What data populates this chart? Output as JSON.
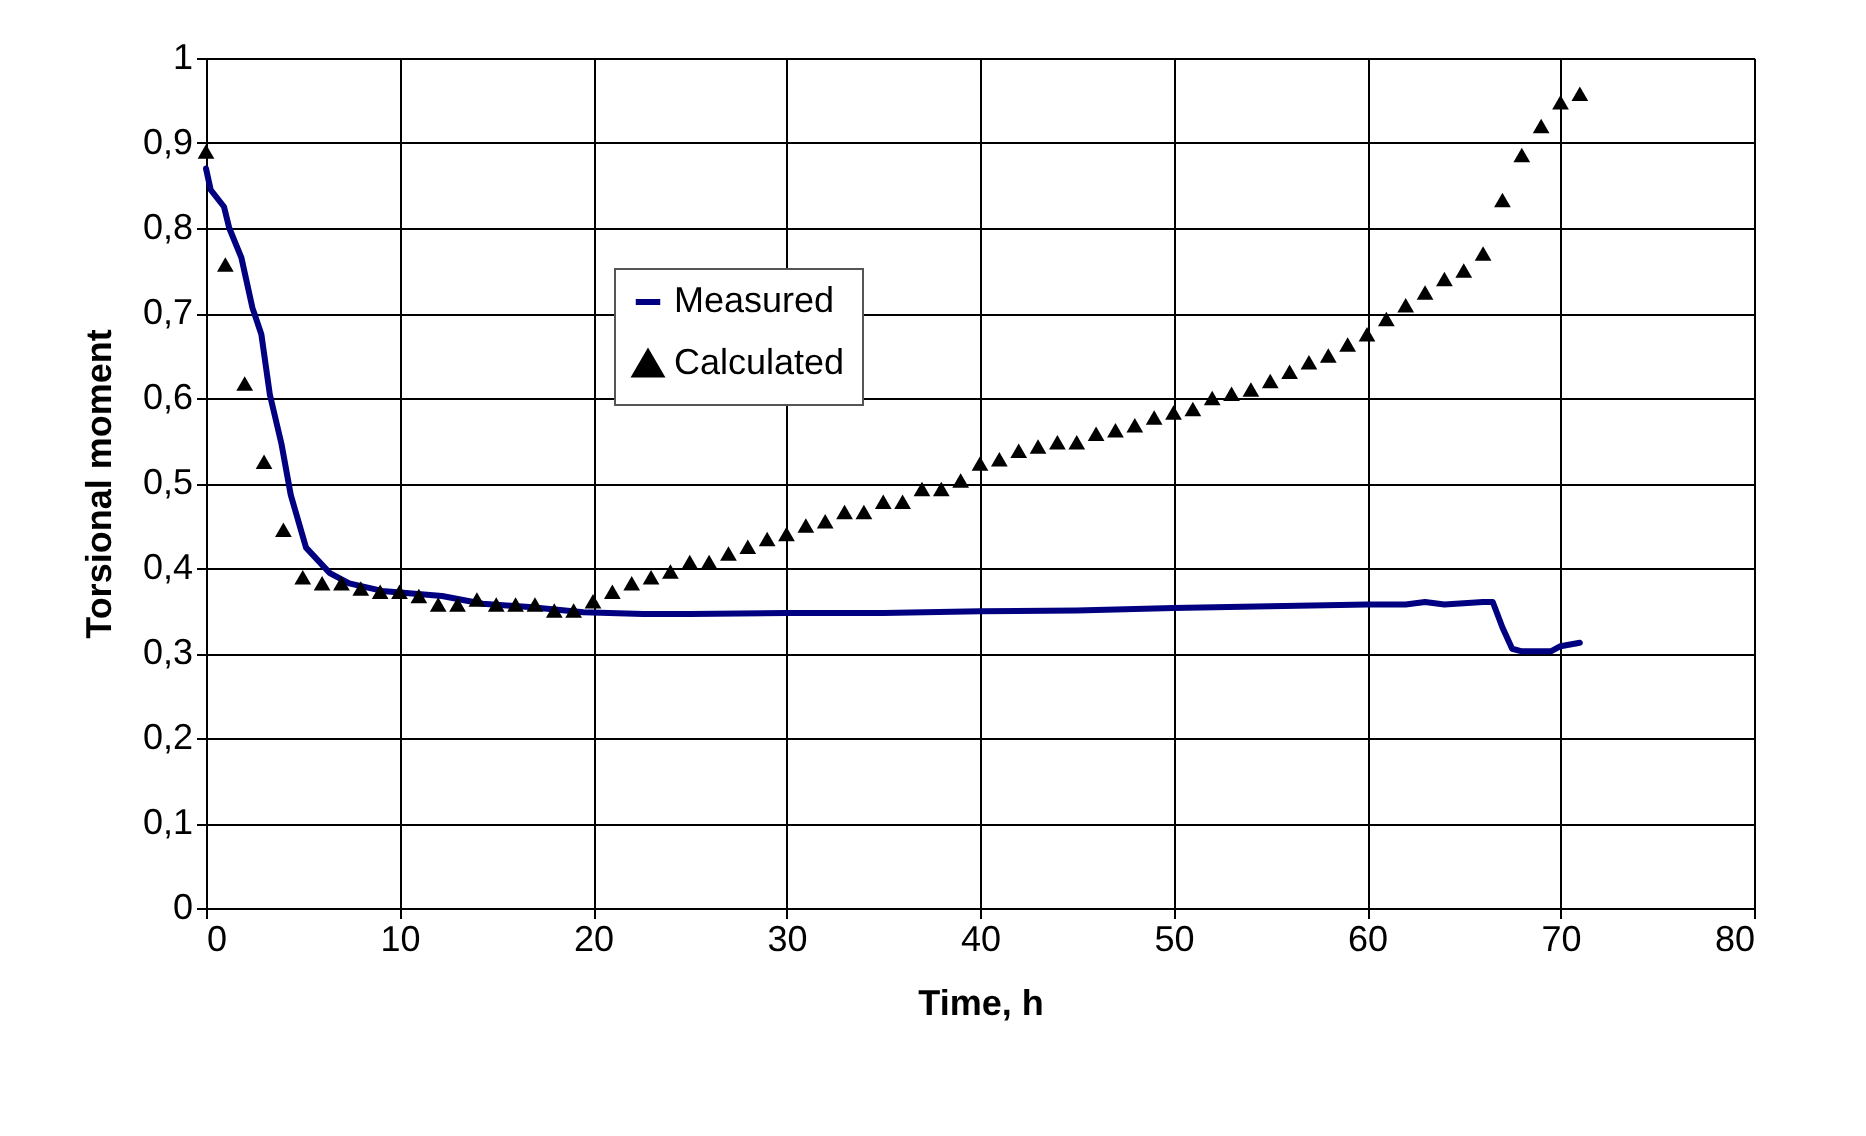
{
  "chart_data": {
    "type": "line",
    "xlabel": "Time, h",
    "ylabel": "Torsional moment",
    "xlim": [
      0,
      80
    ],
    "xticks": [
      0,
      10,
      20,
      30,
      40,
      50,
      60,
      70,
      80
    ],
    "ylim": [
      0,
      1
    ],
    "yticks": [
      {
        "value": 0,
        "label": "0"
      },
      {
        "value": 0.1,
        "label": "0,1"
      },
      {
        "value": 0.2,
        "label": "0,2"
      },
      {
        "value": 0.3,
        "label": "0,3"
      },
      {
        "value": 0.4,
        "label": "0,4"
      },
      {
        "value": 0.5,
        "label": "0,5"
      },
      {
        "value": 0.6,
        "label": "0,6"
      },
      {
        "value": 0.7,
        "label": "0,7"
      },
      {
        "value": 0.8,
        "label": "0,8"
      },
      {
        "value": 0.9,
        "label": "0,9"
      },
      {
        "value": 1,
        "label": "1"
      }
    ],
    "grid": true,
    "legend": "top",
    "series": [
      {
        "name": "Measured",
        "color": "#000080",
        "marker": "none",
        "line_style": "solid",
        "x": [
          0,
          0.24,
          0.93,
          1.2,
          1.83,
          2.4,
          2.86,
          3.3,
          3.9,
          4.38,
          5.17,
          6.4,
          7.4,
          9.1,
          12.2,
          14.3,
          16.7,
          19.5,
          22.6,
          25,
          30,
          35,
          40,
          45,
          50,
          55,
          60,
          62,
          63,
          64,
          66,
          66.5,
          67,
          67.5,
          68,
          69.5,
          70,
          71
        ],
        "values": [
          0.87,
          0.845,
          0.825,
          0.8,
          0.765,
          0.706,
          0.675,
          0.604,
          0.546,
          0.486,
          0.424,
          0.394,
          0.382,
          0.373,
          0.367,
          0.358,
          0.354,
          0.348,
          0.346,
          0.346,
          0.347,
          0.347,
          0.349,
          0.35,
          0.353,
          0.355,
          0.357,
          0.357,
          0.36,
          0.357,
          0.36,
          0.36,
          0.33,
          0.305,
          0.302,
          0.302,
          0.308,
          0.312
        ]
      },
      {
        "name": "Calculated",
        "type": "scatter",
        "color": "#000000",
        "marker": "triangle",
        "x": [
          0,
          1,
          2,
          3,
          4,
          5,
          6,
          7,
          8,
          9,
          10,
          11,
          12,
          13,
          14,
          15,
          16,
          17,
          18,
          19,
          20,
          21,
          22,
          23,
          24,
          25,
          26,
          27,
          28,
          29,
          30,
          31,
          32,
          33,
          34,
          35,
          36,
          37,
          38,
          39,
          40,
          41,
          42,
          43,
          44,
          45,
          46,
          47,
          48,
          49,
          50,
          51,
          52,
          53,
          54,
          55,
          56,
          57,
          58,
          59,
          60,
          61,
          62,
          63,
          64,
          65,
          66,
          67,
          68,
          69,
          70,
          71
        ],
        "values": [
          0.89,
          0.757,
          0.617,
          0.525,
          0.445,
          0.389,
          0.382,
          0.382,
          0.376,
          0.372,
          0.372,
          0.367,
          0.357,
          0.357,
          0.363,
          0.357,
          0.357,
          0.357,
          0.35,
          0.35,
          0.361,
          0.372,
          0.382,
          0.389,
          0.396,
          0.407,
          0.407,
          0.417,
          0.425,
          0.434,
          0.44,
          0.45,
          0.455,
          0.466,
          0.466,
          0.478,
          0.478,
          0.493,
          0.493,
          0.503,
          0.523,
          0.528,
          0.538,
          0.543,
          0.548,
          0.548,
          0.558,
          0.562,
          0.568,
          0.577,
          0.583,
          0.587,
          0.6,
          0.605,
          0.61,
          0.62,
          0.631,
          0.642,
          0.65,
          0.663,
          0.675,
          0.693,
          0.709,
          0.724,
          0.74,
          0.75,
          0.77,
          0.833,
          0.886,
          0.92,
          0.948,
          0.958
        ]
      }
    ]
  }
}
